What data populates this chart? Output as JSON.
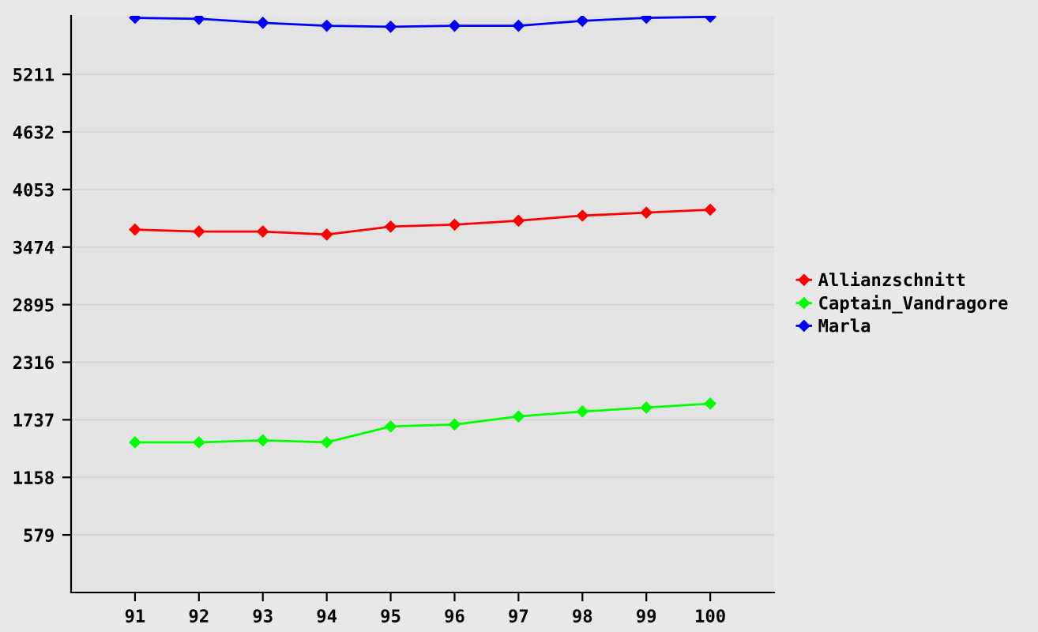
{
  "chart_data": {
    "type": "line",
    "categories": [
      "91",
      "92",
      "93",
      "94",
      "95",
      "96",
      "97",
      "98",
      "99",
      "100"
    ],
    "series": [
      {
        "name": "Allianzschnitt",
        "color": "#ff0000",
        "values": [
          3650,
          3630,
          3630,
          3600,
          3680,
          3700,
          3740,
          3790,
          3820,
          3850
        ]
      },
      {
        "name": "Captain_Vandragore",
        "color": "#00ff00",
        "values": [
          1510,
          1510,
          1530,
          1510,
          1670,
          1690,
          1770,
          1820,
          1860,
          1900
        ]
      },
      {
        "name": "Marla",
        "color": "#0000ff",
        "values": [
          5780,
          5770,
          5730,
          5700,
          5690,
          5700,
          5700,
          5750,
          5780,
          5790
        ]
      }
    ],
    "ylim": [
      0,
      5800
    ],
    "yticks": [
      579,
      1158,
      1737,
      2316,
      2895,
      3474,
      4053,
      4632,
      5211
    ],
    "grid": "y",
    "legend": "right",
    "marker": "diamond",
    "line_style": "solid"
  }
}
